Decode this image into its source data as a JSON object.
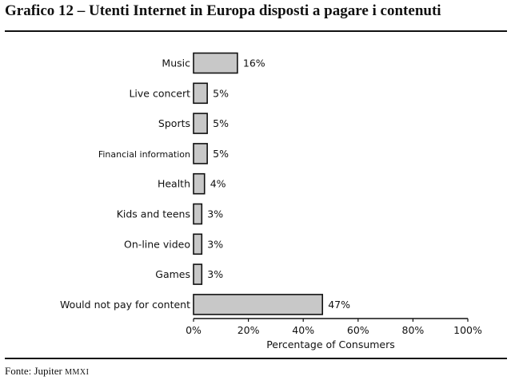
{
  "title": "Grafico 12 – Utenti Internet in Europa disposti a pagare i contenuti",
  "source": {
    "prefix": "Fonte: Jupiter",
    "suffix": "MMXI"
  },
  "colors": {
    "bar_fill": "#c8c8c8",
    "bar_stroke": "#111111"
  },
  "chart_data": {
    "type": "bar",
    "orientation": "horizontal",
    "categories": [
      "Music",
      "Live concert",
      "Sports",
      "Financial information",
      "Health",
      "Kids and teens",
      "On-line video",
      "Games",
      "Would not pay for content"
    ],
    "values": [
      16,
      5,
      5,
      5,
      4,
      3,
      3,
      3,
      47
    ],
    "value_labels": [
      "16%",
      "5%",
      "5%",
      "5%",
      "4%",
      "3%",
      "3%",
      "3%",
      "47%"
    ],
    "xlabel": "Percentage of Consumers",
    "ylabel": "",
    "xlim": [
      0,
      100
    ],
    "xticks": [
      0,
      20,
      40,
      60,
      80,
      100
    ],
    "xtick_labels": [
      "0%",
      "20%",
      "40%",
      "60%",
      "80%",
      "100%"
    ],
    "grid": false,
    "legend": false
  }
}
